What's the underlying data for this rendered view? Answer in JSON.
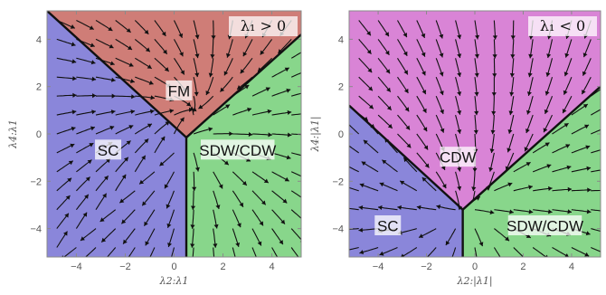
{
  "colors": {
    "red_region": "#cf7d77",
    "blue_region": "#8a86da",
    "green_region": "#88d68b",
    "magenta_region": "#d984d6",
    "flow": "#111111",
    "boundary": "#111111"
  },
  "chart_data": [
    {
      "type": "streamplot",
      "id": "left",
      "title": "",
      "sign_label": "λ₁ > 0",
      "xlabel": "λ2:λ1",
      "ylabel": "λ4:λ1",
      "xlim": [
        -5.2,
        5.2
      ],
      "ylim": [
        -5.2,
        5.2
      ],
      "xticks": [
        -4,
        -2,
        0,
        2,
        4
      ],
      "yticks": [
        -4,
        -2,
        0,
        2,
        4
      ],
      "tick_labels_x": [
        "−4",
        "−2",
        "0",
        "2",
        "4"
      ],
      "tick_labels_y": [
        "−4",
        "−2",
        "0",
        "2",
        "4"
      ],
      "fixed_point": [
        0.5,
        -0.15
      ],
      "boundaries": [
        {
          "from": [
            0.5,
            -0.15
          ],
          "to": [
            -5.2,
            5.2
          ]
        },
        {
          "from": [
            0.5,
            -0.15
          ],
          "to": [
            5.2,
            4.2
          ]
        },
        {
          "from": [
            0.5,
            -0.15
          ],
          "to": [
            0.5,
            -5.2
          ]
        }
      ],
      "regions": [
        {
          "name": "FM",
          "color_key": "red_region",
          "label_at": [
            0.2,
            1.8
          ],
          "polygon": [
            [
              0.5,
              -0.15
            ],
            [
              -5.2,
              5.2
            ],
            [
              5.2,
              5.2
            ],
            [
              5.2,
              4.2
            ]
          ]
        },
        {
          "name": "SC",
          "color_key": "blue_region",
          "label_at": [
            -2.7,
            -0.7
          ],
          "polygon": [
            [
              0.5,
              -0.15
            ],
            [
              -5.2,
              5.2
            ],
            [
              -5.2,
              -5.2
            ],
            [
              0.5,
              -5.2
            ]
          ]
        },
        {
          "name": "SDW/CDW",
          "color_key": "green_region",
          "label_at": [
            2.6,
            -0.7
          ],
          "polygon": [
            [
              0.5,
              -0.15
            ],
            [
              5.2,
              4.2
            ],
            [
              5.2,
              -5.2
            ],
            [
              0.5,
              -5.2
            ]
          ]
        }
      ]
    },
    {
      "type": "streamplot",
      "id": "right",
      "title": "",
      "sign_label": "λ₁ < 0",
      "xlabel": "λ2:|λ1|",
      "ylabel": "λ4:|λ1|",
      "xlim": [
        -5.2,
        5.2
      ],
      "ylim": [
        -5.2,
        5.2
      ],
      "xticks": [
        -4,
        -2,
        0,
        2,
        4
      ],
      "yticks": [
        -4,
        -2,
        0,
        2,
        4
      ],
      "tick_labels_x": [
        "−4",
        "−2",
        "0",
        "2",
        "4"
      ],
      "tick_labels_y": [
        "−4",
        "−2",
        "0",
        "2",
        "4"
      ],
      "fixed_point": [
        -0.5,
        -3.2
      ],
      "boundaries": [
        {
          "from": [
            -0.5,
            -3.2
          ],
          "to": [
            -5.2,
            1.2
          ]
        },
        {
          "from": [
            -0.5,
            -3.2
          ],
          "to": [
            5.2,
            2.0
          ]
        },
        {
          "from": [
            -0.5,
            -3.2
          ],
          "to": [
            -0.5,
            -5.2
          ]
        }
      ],
      "regions": [
        {
          "name": "CDW",
          "color_key": "magenta_region",
          "label_at": [
            -0.7,
            -1.0
          ],
          "polygon": [
            [
              -0.5,
              -3.2
            ],
            [
              -5.2,
              1.2
            ],
            [
              -5.2,
              5.2
            ],
            [
              5.2,
              5.2
            ],
            [
              5.2,
              2.0
            ]
          ]
        },
        {
          "name": "SC",
          "color_key": "blue_region",
          "label_at": [
            -3.6,
            -3.9
          ],
          "polygon": [
            [
              -0.5,
              -3.2
            ],
            [
              -5.2,
              1.2
            ],
            [
              -5.2,
              -5.2
            ],
            [
              -0.5,
              -5.2
            ]
          ]
        },
        {
          "name": "SDW/CDW",
          "color_key": "green_region",
          "label_at": [
            2.9,
            -3.9
          ],
          "polygon": [
            [
              -0.5,
              -3.2
            ],
            [
              5.2,
              2.0
            ],
            [
              5.2,
              -5.2
            ],
            [
              -0.5,
              -5.2
            ]
          ]
        }
      ]
    }
  ]
}
